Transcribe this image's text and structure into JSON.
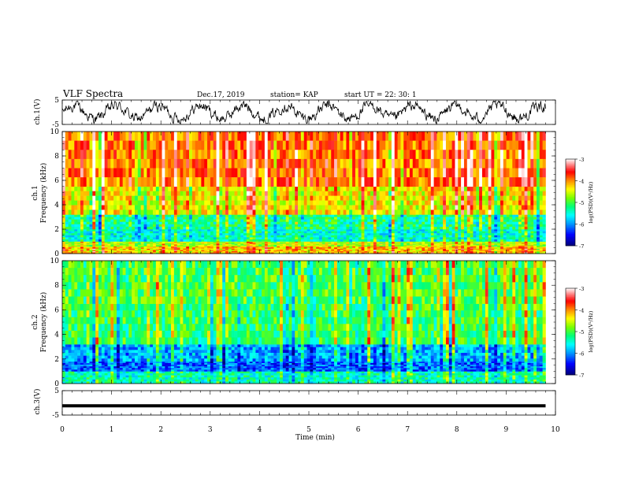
{
  "header": {
    "title": "VLF Spectra",
    "date": "Dec.17, 2019",
    "station": "station= KAP",
    "start": "start  UT =   22: 30: 1"
  },
  "colors": {
    "colormap": [
      "#ffffff",
      "#ff0000",
      "#ffff00",
      "#00ff00",
      "#00ffff",
      "#0000ff",
      "#000080"
    ],
    "trace": "#000000",
    "background": "#ffffff"
  },
  "chart_data": [
    {
      "type": "line",
      "panel": "ch1-waveform",
      "ylabel": "ch.1(V)",
      "ylim": [
        -5,
        5
      ],
      "yticks": [
        "5",
        "-5"
      ],
      "xlim": [
        0,
        10
      ],
      "x_extent": [
        0,
        9.8
      ],
      "description_values": "noisy waveform oscillating roughly between -4 and 4 V"
    },
    {
      "type": "heatmap",
      "panel": "ch1-spectrogram",
      "ylabel": "ch.1\nFrequency (kHz)",
      "ylim": [
        0,
        10
      ],
      "yticks": [
        "0",
        "2",
        "4",
        "6",
        "8",
        "10"
      ],
      "xlim": [
        0,
        10
      ],
      "x_extent": [
        0,
        9.8
      ],
      "colorbar": {
        "label": "log(PSD)(V²/Hz)",
        "range": [
          -7,
          -3
        ],
        "ticks": [
          "-3",
          "-4",
          "-5",
          "-6",
          "-7"
        ]
      },
      "bands": [
        {
          "f_min": 0,
          "f_max": 0.6,
          "level": -4.2
        },
        {
          "f_min": 0.6,
          "f_max": 1.0,
          "level": -4.6
        },
        {
          "f_min": 1.0,
          "f_max": 2.0,
          "level": -5.5
        },
        {
          "f_min": 2.0,
          "f_max": 3.2,
          "level": -5.3
        },
        {
          "f_min": 3.2,
          "f_max": 5.5,
          "level": -4.4
        },
        {
          "f_min": 5.5,
          "f_max": 10,
          "level": -3.9
        }
      ]
    },
    {
      "type": "heatmap",
      "panel": "ch2-spectrogram",
      "ylabel": "ch.2\nFrequency (kHz)",
      "ylim": [
        0,
        10
      ],
      "yticks": [
        "0",
        "2",
        "4",
        "6",
        "8",
        "10"
      ],
      "xlim": [
        0,
        10
      ],
      "x_extent": [
        0,
        9.8
      ],
      "colorbar": {
        "label": "log(PSD)(V²/Hz)",
        "range": [
          -7,
          -3
        ],
        "ticks": [
          "-3",
          "-4",
          "-5",
          "-6",
          "-7"
        ]
      },
      "bands": [
        {
          "f_min": 0,
          "f_max": 1.0,
          "level": -5.4
        },
        {
          "f_min": 1.0,
          "f_max": 1.8,
          "level": -6.2
        },
        {
          "f_min": 1.8,
          "f_max": 3.2,
          "level": -5.9
        },
        {
          "f_min": 3.2,
          "f_max": 6.5,
          "level": -5.1
        },
        {
          "f_min": 6.5,
          "f_max": 10,
          "level": -5.0
        }
      ]
    },
    {
      "type": "line",
      "panel": "ch3-waveform",
      "ylabel": "ch.3(V)",
      "ylim": [
        -5,
        5
      ],
      "yticks": [
        "5",
        "-5"
      ],
      "xlim": [
        0,
        10
      ],
      "x_extent": [
        0,
        9.8
      ],
      "constant_value": -1.2
    }
  ],
  "xaxis": {
    "label": "Time (min)",
    "ticks": [
      "0",
      "1",
      "2",
      "3",
      "4",
      "5",
      "6",
      "7",
      "8",
      "9",
      "10"
    ]
  }
}
